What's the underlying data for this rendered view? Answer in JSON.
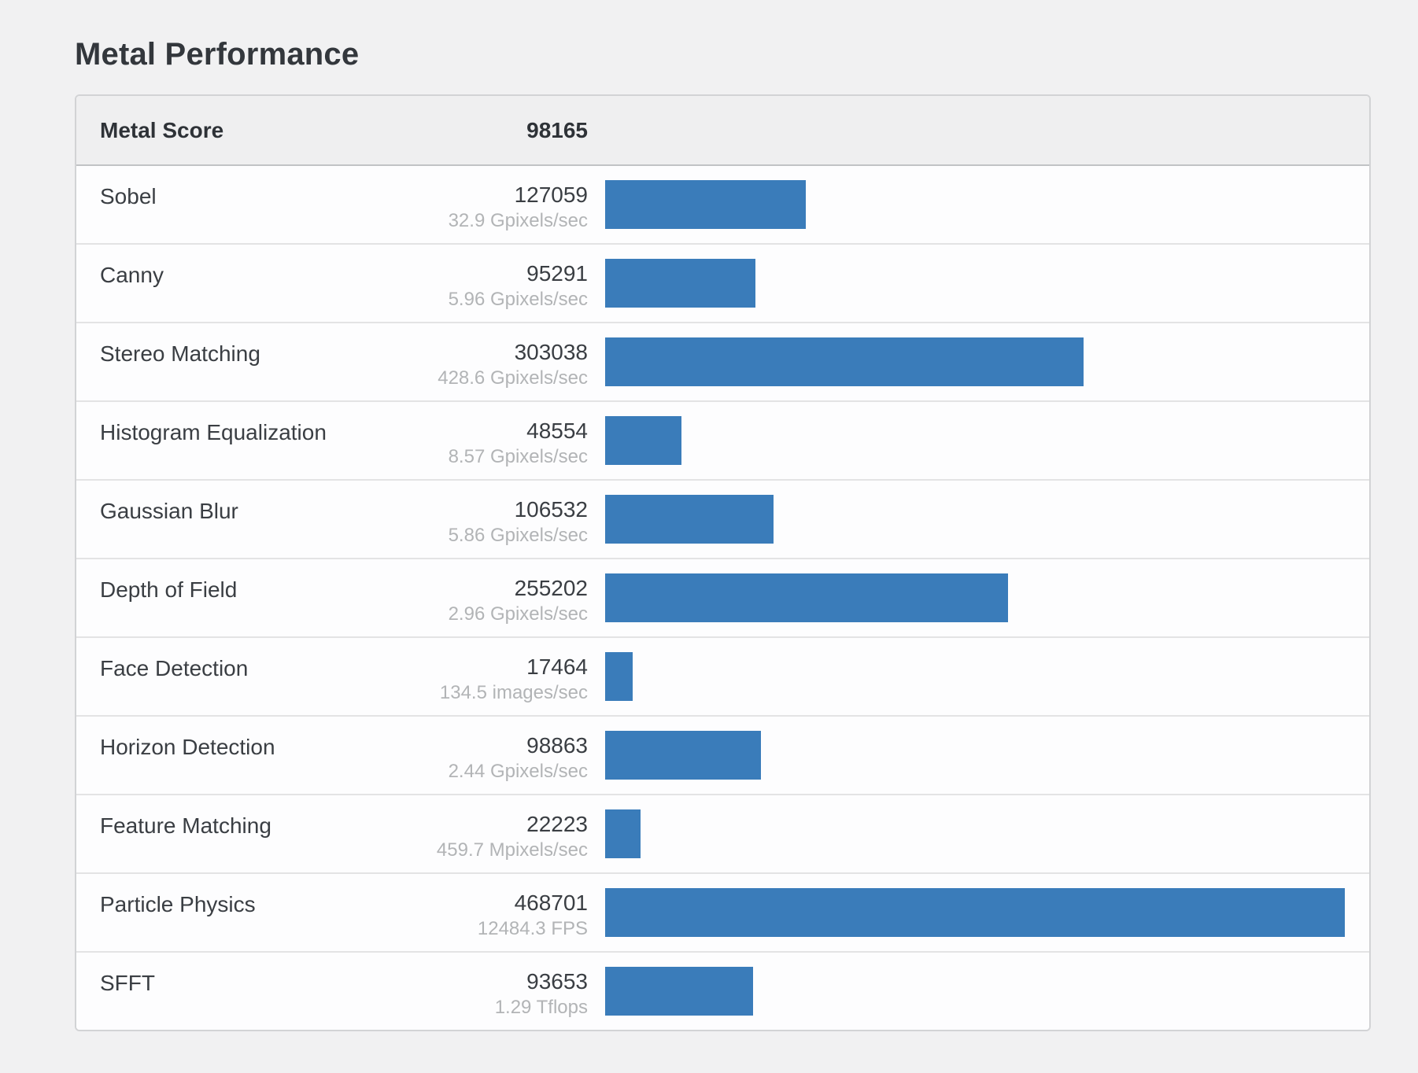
{
  "page": {
    "title": "Metal Performance"
  },
  "header": {
    "label": "Metal Score",
    "value": "98165"
  },
  "colors": {
    "bar": "#3a7cba",
    "page_bg": "#f1f1f2",
    "header_bg": "#efeff0",
    "text_dark": "#3a3e43",
    "text_muted": "#b2b4b6"
  },
  "chart_data": {
    "type": "bar",
    "orientation": "horizontal",
    "title": "Metal Performance",
    "summary_label": "Metal Score",
    "summary_score": 98165,
    "categories": [
      "Sobel",
      "Canny",
      "Stereo Matching",
      "Histogram Equalization",
      "Gaussian Blur",
      "Depth of Field",
      "Face Detection",
      "Horizon Detection",
      "Feature Matching",
      "Particle Physics",
      "SFFT"
    ],
    "values": [
      127059,
      95291,
      303038,
      48554,
      106532,
      255202,
      17464,
      98863,
      22223,
      468701,
      93653
    ],
    "value_labels": [
      "32.9 Gpixels/sec",
      "5.96 Gpixels/sec",
      "428.6 Gpixels/sec",
      "8.57 Gpixels/sec",
      "5.86 Gpixels/sec",
      "2.96 Gpixels/sec",
      "134.5 images/sec",
      "2.44 Gpixels/sec",
      "459.7 Mpixels/sec",
      "12484.3 FPS",
      "1.29 Tflops"
    ],
    "xlim": [
      0,
      468701
    ],
    "bar_color": "#3a7cba",
    "grid": false,
    "legend": false
  }
}
